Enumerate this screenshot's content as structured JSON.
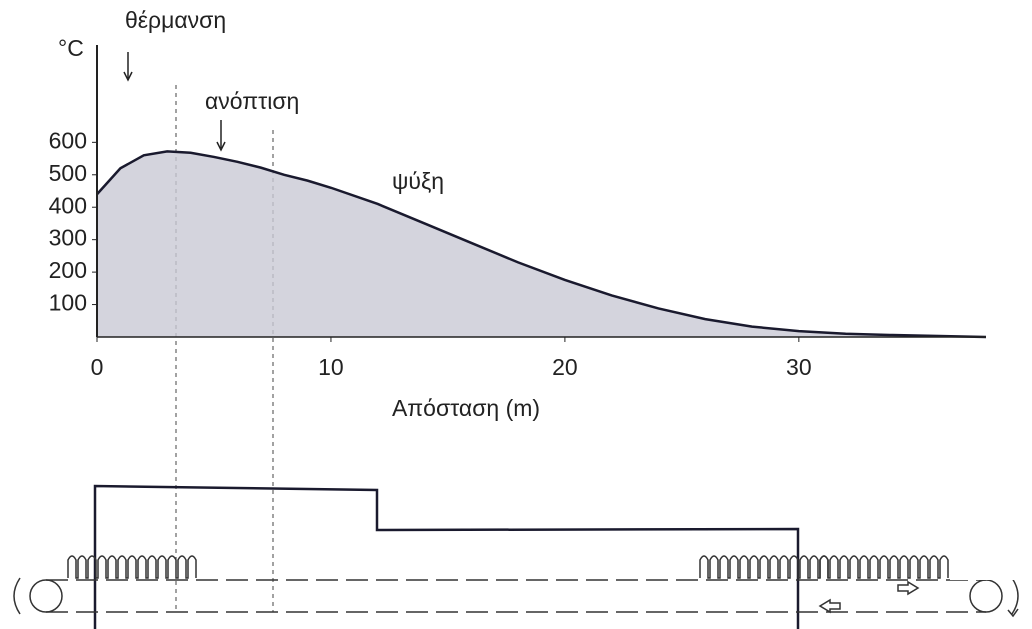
{
  "chart_data": {
    "type": "area",
    "y_label": "°C",
    "x_label": "Απόσταση (m)",
    "annotations": [
      "θέρμανση",
      "ανόπτιση",
      "ψύξη"
    ],
    "x": [
      0,
      1,
      2,
      3,
      4,
      5,
      6,
      7,
      8,
      9,
      10,
      12,
      14,
      16,
      18,
      20,
      22,
      24,
      26,
      28,
      30,
      32,
      34,
      36,
      38
    ],
    "values": [
      440,
      520,
      560,
      572,
      568,
      555,
      540,
      522,
      500,
      482,
      460,
      410,
      350,
      290,
      230,
      176,
      128,
      88,
      55,
      32,
      18,
      10,
      6,
      3,
      0
    ],
    "color": "#c9c9d4",
    "line_color": "#1a1a2e",
    "xlim": [
      0,
      38
    ],
    "ylim": [
      0,
      900
    ],
    "xticks": [
      0,
      10,
      20,
      30
    ],
    "yticks": [
      100,
      200,
      300,
      400,
      500,
      600
    ]
  }
}
